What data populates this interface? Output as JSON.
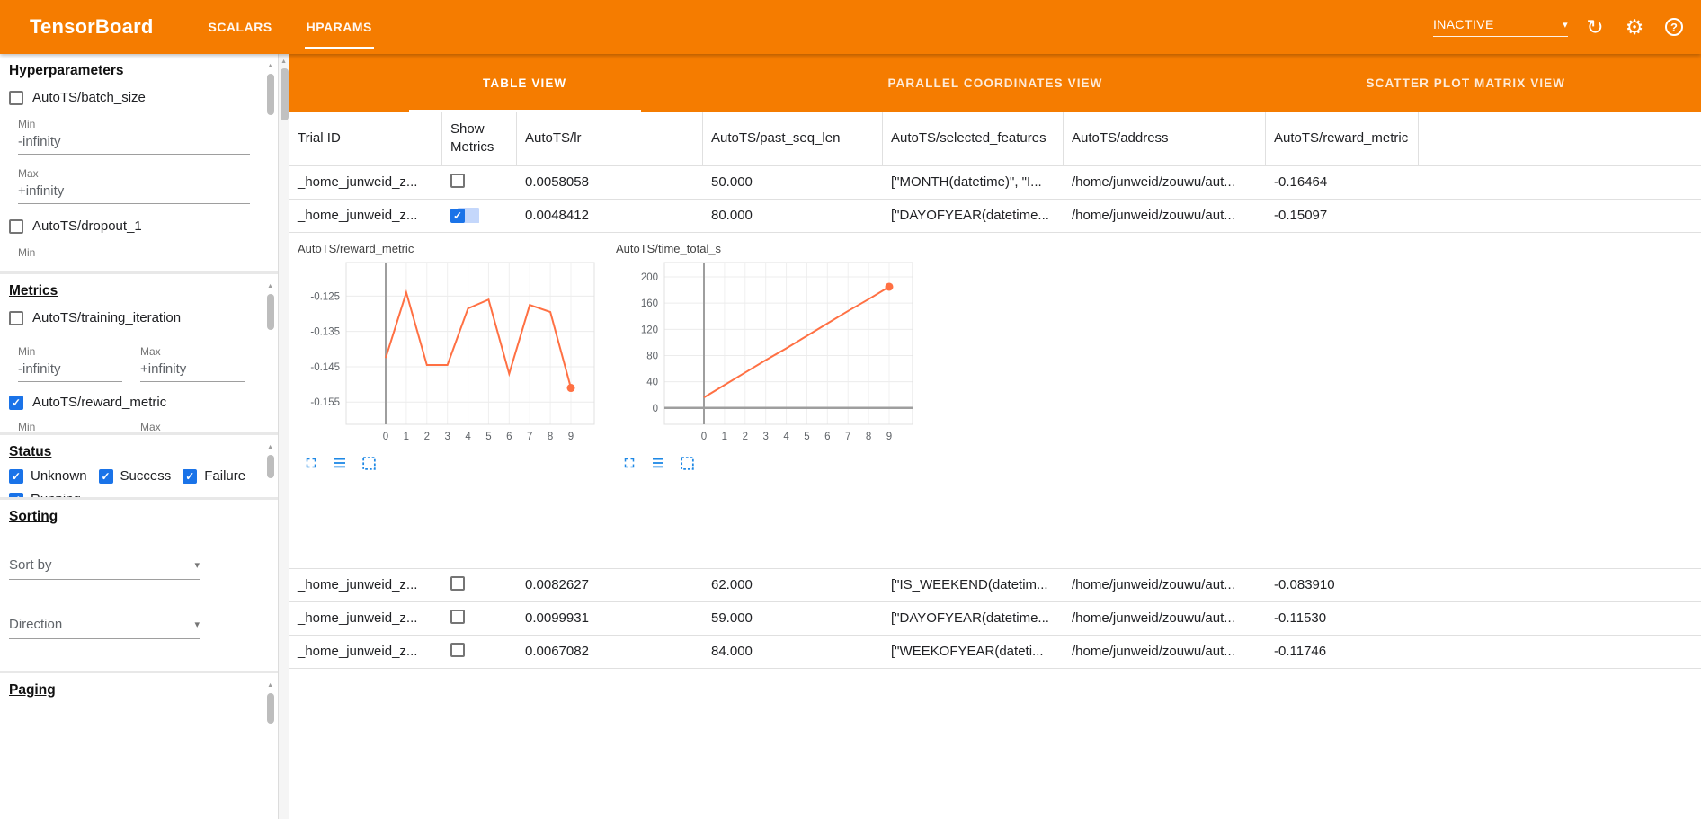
{
  "colors": {
    "toolbar_orange": "#f57c00",
    "chart_line": "#ff7043",
    "checkbox_blue": "#1a73e8",
    "chart_icon_blue": "#1e88e5"
  },
  "icons": {
    "check": "✓",
    "caret": "▾",
    "refresh": "↻",
    "settings": "⚙",
    "help": "?",
    "scroll_up": "▲"
  },
  "header": {
    "title": "TensorBoard",
    "tabs": [
      {
        "label": "SCALARS",
        "active": false
      },
      {
        "label": "HPARAMS",
        "active": true
      }
    ],
    "status_dropdown": {
      "value": "INACTIVE"
    }
  },
  "sidebar": {
    "hyperparameters": {
      "heading": "Hyperparameters",
      "items": [
        {
          "label": "AutoTS/batch_size",
          "checked": false,
          "min_label": "Min",
          "min_value": "-infinity",
          "max_label": "Max",
          "max_value": "+infinity"
        },
        {
          "label": "AutoTS/dropout_1",
          "checked": false,
          "min_label": "Min"
        }
      ]
    },
    "metrics": {
      "heading": "Metrics",
      "items": [
        {
          "label": "AutoTS/training_iteration",
          "checked": false,
          "min_label": "Min",
          "min_value": "-infinity",
          "max_label": "Max",
          "max_value": "+infinity"
        },
        {
          "label": "AutoTS/reward_metric",
          "checked": true,
          "min_label": "Min",
          "max_label": "Max"
        }
      ]
    },
    "status": {
      "heading": "Status",
      "items": [
        {
          "label": "Unknown",
          "checked": true
        },
        {
          "label": "Success",
          "checked": true
        },
        {
          "label": "Failure",
          "checked": true
        },
        {
          "label": "Running",
          "checked": true
        }
      ]
    },
    "sorting": {
      "heading": "Sorting",
      "sort_by_placeholder": "Sort by",
      "direction_placeholder": "Direction"
    },
    "paging": {
      "heading": "Paging"
    }
  },
  "main": {
    "view_tabs": [
      {
        "label": "TABLE VIEW",
        "active": true
      },
      {
        "label": "PARALLEL COORDINATES VIEW",
        "active": false
      },
      {
        "label": "SCATTER PLOT MATRIX VIEW",
        "active": false
      }
    ],
    "table": {
      "columns": [
        "Trial ID",
        "Show Metrics",
        "AutoTS/lr",
        "AutoTS/past_seq_len",
        "AutoTS/selected_features",
        "AutoTS/address",
        "AutoTS/reward_metric"
      ],
      "rows": [
        {
          "trial_id": "_home_junweid_z...",
          "show_metrics": false,
          "lr": "0.0058058",
          "past_seq_len": "50.000",
          "selected_features": "[\"MONTH(datetime)\", \"I...",
          "address": "/home/junweid/zouwu/aut...",
          "reward_metric": "-0.16464"
        },
        {
          "trial_id": "_home_junweid_z...",
          "show_metrics": true,
          "lr": "0.0048412",
          "past_seq_len": "80.000",
          "selected_features": "[\"DAYOFYEAR(datetime...",
          "address": "/home/junweid/zouwu/aut...",
          "reward_metric": "-0.15097"
        },
        {
          "trial_id": "_home_junweid_z...",
          "show_metrics": false,
          "lr": "0.0082627",
          "past_seq_len": "62.000",
          "selected_features": "[\"IS_WEEKEND(datetim...",
          "address": "/home/junweid/zouwu/aut...",
          "reward_metric": "-0.083910"
        },
        {
          "trial_id": "_home_junweid_z...",
          "show_metrics": false,
          "lr": "0.0099931",
          "past_seq_len": "59.000",
          "selected_features": "[\"DAYOFYEAR(datetime...",
          "address": "/home/junweid/zouwu/aut...",
          "reward_metric": "-0.11530"
        },
        {
          "trial_id": "_home_junweid_z...",
          "show_metrics": false,
          "lr": "0.0067082",
          "past_seq_len": "84.000",
          "selected_features": "[\"WEEKOFYEAR(dateti...",
          "address": "/home/junweid/zouwu/aut...",
          "reward_metric": "-0.11746"
        }
      ]
    }
  },
  "chart_data": [
    {
      "type": "line",
      "title": "AutoTS/reward_metric",
      "x": [
        0,
        1,
        2,
        3,
        4,
        5,
        6,
        7,
        8,
        9
      ],
      "values": [
        -0.1425,
        -0.124,
        -0.1445,
        -0.1445,
        -0.1285,
        -0.126,
        -0.147,
        -0.1275,
        -0.1295,
        -0.151
      ],
      "ylim": [
        -0.1613,
        -0.1155
      ],
      "yticks": [
        -0.125,
        -0.135,
        -0.145,
        -0.155
      ],
      "ytick_labels": [
        "-0.125",
        "-0.135",
        "-0.145",
        "-0.155"
      ],
      "xticks": [
        0,
        1,
        2,
        3,
        4,
        5,
        6,
        7,
        8,
        9
      ],
      "xlabel": "",
      "ylabel": "",
      "grid": true,
      "legend": "none",
      "line_color": "#ff7043"
    },
    {
      "type": "line",
      "title": "AutoTS/time_total_s",
      "x": [
        0,
        1,
        2,
        3,
        4,
        5,
        6,
        7,
        8,
        9
      ],
      "values": [
        16,
        35,
        54,
        73,
        91,
        110,
        129,
        148,
        166,
        185
      ],
      "ylim": [
        -25,
        222
      ],
      "yticks": [
        0,
        40,
        80,
        120,
        160,
        200
      ],
      "ytick_labels": [
        "0",
        "40",
        "80",
        "120",
        "160",
        "200"
      ],
      "xticks": [
        0,
        1,
        2,
        3,
        4,
        5,
        6,
        7,
        8,
        9
      ],
      "xlabel": "",
      "ylabel": "",
      "grid": true,
      "legend": "none",
      "line_color": "#ff7043"
    }
  ]
}
